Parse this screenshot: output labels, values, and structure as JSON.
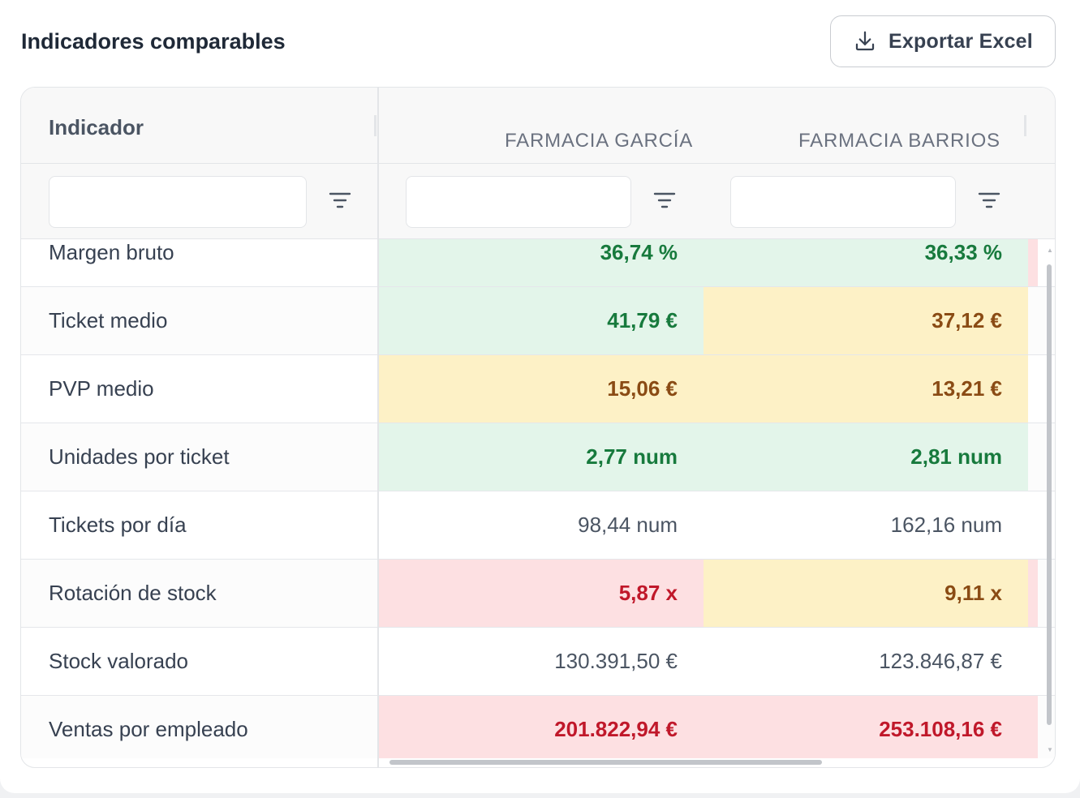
{
  "title": "Indicadores comparables",
  "export_button": {
    "label": "Exportar Excel",
    "icon": "download-icon"
  },
  "columns": {
    "indicador": "Indicador",
    "col1": "FARMACIA GARCÍA",
    "col2": "FARMACIA BARRIOS"
  },
  "filters": {
    "indicador": "",
    "col1": "",
    "col2": ""
  },
  "colors": {
    "green_bg": "#e3f5ea",
    "green_text": "#177a3d",
    "yellow_bg": "#fdf1c6",
    "yellow_text": "#8a4b14",
    "red_bg": "#fde0e2",
    "red_text": "#c0182a"
  },
  "rows": [
    {
      "name": "Margen bruto",
      "v1": "36,74 %",
      "s1": "green",
      "v2": "36,33 %",
      "s2": "green",
      "edge": "red"
    },
    {
      "name": "Ticket medio",
      "v1": "41,79 €",
      "s1": "green",
      "v2": "37,12 €",
      "s2": "yellow",
      "edge": "none"
    },
    {
      "name": "PVP medio",
      "v1": "15,06 €",
      "s1": "yellow",
      "v2": "13,21 €",
      "s2": "yellow",
      "edge": "none"
    },
    {
      "name": "Unidades por ticket",
      "v1": "2,77 num",
      "s1": "green",
      "v2": "2,81 num",
      "s2": "green",
      "edge": "none"
    },
    {
      "name": "Tickets por día",
      "v1": "98,44 num",
      "s1": "none",
      "v2": "162,16 num",
      "s2": "none",
      "edge": "none"
    },
    {
      "name": "Rotación de stock",
      "v1": "5,87 x",
      "s1": "red",
      "v2": "9,11 x",
      "s2": "yellow",
      "edge": "red"
    },
    {
      "name": "Stock valorado",
      "v1": "130.391,50 €",
      "s1": "none",
      "v2": "123.846,87 €",
      "s2": "none",
      "edge": "none"
    },
    {
      "name": "Ventas por empleado",
      "v1": "201.822,94 €",
      "s1": "red",
      "v2": "253.108,16 €",
      "s2": "red",
      "edge": "red"
    }
  ]
}
